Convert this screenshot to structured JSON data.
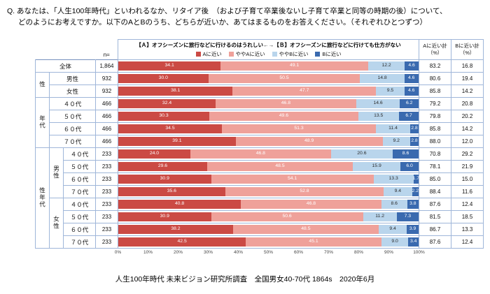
{
  "question": {
    "line1": "Q. あなたは、「人生100年時代」といわれるなか、リタイア後　（および子育て卒業後ないし子育て卒業と同等の時期の後）について、",
    "line2": "どのようにお考えですか。以下のAとBのうち、どちらが近いか、あてはまるものをお答えください。（それぞれひとつずつ）"
  },
  "header": {
    "n_label": "n=",
    "legend_title": "【Ａ】オフシーズンに旅行などに行けるのはうれしい←→【Ｂ】オフシーズンに旅行などに行けても仕方がない"
  },
  "totals": {
    "a_line1": "Aに近い計",
    "a_line2": "（%）",
    "b_line1": "Bに近い計",
    "b_line2": "（%）"
  },
  "legend": [
    {
      "label": "Aに近い",
      "color": "#CB4A44"
    },
    {
      "label": "ややAに近い",
      "color": "#EFA19A"
    },
    {
      "label": "ややBに近い",
      "color": "#B9D5EC"
    },
    {
      "label": "Bに近い",
      "color": "#3A6AAF"
    }
  ],
  "axis_ticks": [
    "0%",
    "10%",
    "20%",
    "30%",
    "40%",
    "50%",
    "60%",
    "70%",
    "80%",
    "90%",
    "100%"
  ],
  "caption": "人生100年時代 未来ビジョン研究所調査　全国男女40-70代 1864s　2020年6月",
  "chart_data": {
    "type": "bar",
    "stacked": true,
    "orientation": "horizontal",
    "xlim": [
      0,
      100
    ],
    "series_names": [
      "Aに近い",
      "ややAに近い",
      "ややBに近い",
      "Bに近い"
    ],
    "colors": [
      "#CB4A44",
      "#EFA19A",
      "#B9D5EC",
      "#3A6AAF"
    ],
    "rows": [
      {
        "label": "全体",
        "label_span": 3,
        "n": "1,864",
        "values": [
          34.1,
          49.1,
          12.2,
          4.6
        ],
        "a_total": "83.2",
        "b_total": "16.8",
        "cls": "grp"
      },
      {
        "g1": {
          "label": "性",
          "span": 2
        },
        "label": "男性",
        "label_span": 2,
        "n": "932",
        "values": [
          30.0,
          50.5,
          14.8,
          4.6
        ],
        "a_total": "80.6",
        "b_total": "19.4",
        "cls": "grp"
      },
      {
        "label": "女性",
        "label_span": 2,
        "n": "932",
        "values": [
          38.1,
          47.7,
          9.5,
          4.6
        ],
        "a_total": "85.8",
        "b_total": "14.2"
      },
      {
        "g1": {
          "label": "年代",
          "span": 4
        },
        "label": "４０代",
        "label_span": 2,
        "n": "466",
        "values": [
          32.4,
          46.8,
          14.6,
          6.2
        ],
        "a_total": "79.2",
        "b_total": "20.8",
        "cls": "grp"
      },
      {
        "label": "５０代",
        "label_span": 2,
        "n": "466",
        "values": [
          30.3,
          49.6,
          13.5,
          6.7
        ],
        "a_total": "79.8",
        "b_total": "20.2"
      },
      {
        "label": "６０代",
        "label_span": 2,
        "n": "466",
        "values": [
          34.5,
          51.3,
          11.4,
          2.8
        ],
        "a_total": "85.8",
        "b_total": "14.2"
      },
      {
        "label": "７０代",
        "label_span": 2,
        "n": "466",
        "values": [
          39.1,
          48.9,
          9.2,
          2.8
        ],
        "a_total": "88.0",
        "b_total": "12.0"
      },
      {
        "g1": {
          "label": "性年代",
          "span": 8
        },
        "g2": {
          "label": "男性",
          "span": 4
        },
        "label": "４０代",
        "n": "233",
        "values": [
          24.0,
          46.8,
          20.6,
          8.6
        ],
        "a_total": "70.8",
        "b_total": "29.2",
        "cls": "grp"
      },
      {
        "label": "５０代",
        "n": "233",
        "values": [
          29.6,
          48.5,
          15.9,
          6.0
        ],
        "a_total": "78.1",
        "b_total": "21.9"
      },
      {
        "label": "６０代",
        "n": "233",
        "values": [
          30.9,
          54.1,
          13.3,
          1.7
        ],
        "a_total": "85.0",
        "b_total": "15.0"
      },
      {
        "label": "７０代",
        "n": "233",
        "values": [
          35.6,
          52.8,
          9.4,
          2.2
        ],
        "a_total": "88.4",
        "b_total": "11.6"
      },
      {
        "g2": {
          "label": "女性",
          "span": 4
        },
        "label": "４０代",
        "n": "233",
        "values": [
          40.8,
          46.8,
          8.6,
          3.8
        ],
        "a_total": "87.6",
        "b_total": "12.4"
      },
      {
        "label": "５０代",
        "n": "233",
        "values": [
          30.9,
          50.6,
          11.2,
          7.3
        ],
        "a_total": "81.5",
        "b_total": "18.5"
      },
      {
        "label": "６０代",
        "n": "233",
        "values": [
          38.2,
          48.5,
          9.4,
          3.9
        ],
        "a_total": "86.7",
        "b_total": "13.3"
      },
      {
        "label": "７０代",
        "n": "233",
        "values": [
          42.5,
          45.1,
          9.0,
          3.4
        ],
        "a_total": "87.6",
        "b_total": "12.4"
      }
    ]
  }
}
